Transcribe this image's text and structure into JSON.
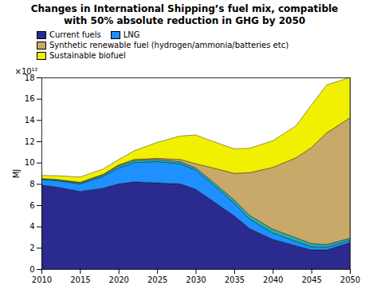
{
  "chart_data": {
    "type": "area",
    "stacked": true,
    "title": "Changes in International Shipping’s fuel mix, compatible\nwith 50% absolute reduction in GHG by 2050",
    "ylabel": "MJ",
    "annotations": [
      "×10¹²"
    ],
    "x": [
      2010,
      2012,
      2015,
      2018,
      2020,
      2022,
      2025,
      2028,
      2030,
      2032,
      2035,
      2037,
      2040,
      2043,
      2045,
      2047,
      2050
    ],
    "series": [
      {
        "name": "Current fuels",
        "color": "#2b2b8f",
        "values": [
          7.9,
          7.7,
          7.3,
          7.6,
          8.0,
          8.2,
          8.1,
          8.0,
          7.5,
          6.5,
          5.0,
          3.8,
          2.8,
          2.2,
          1.8,
          1.8,
          2.5
        ]
      },
      {
        "name": "LNG",
        "color": "#1e90ff",
        "values": [
          0.5,
          0.6,
          0.7,
          1.1,
          1.5,
          1.8,
          2.0,
          1.9,
          1.8,
          1.6,
          1.2,
          0.9,
          0.6,
          0.4,
          0.3,
          0.25,
          0.2
        ]
      },
      {
        "name": null,
        "color": "#20b2aa",
        "values": [
          0.1,
          0.1,
          0.1,
          0.15,
          0.2,
          0.2,
          0.2,
          0.2,
          0.2,
          0.25,
          0.3,
          0.35,
          0.35,
          0.35,
          0.3,
          0.25,
          0.2
        ]
      },
      {
        "name": "Synthetic renewable fuel (hydrogen/ammonia/batteries etc)",
        "color": "#c8a96a",
        "values": [
          0.0,
          0.02,
          0.05,
          0.05,
          0.08,
          0.1,
          0.1,
          0.2,
          0.4,
          1.2,
          2.5,
          4.0,
          5.8,
          7.5,
          9.0,
          10.5,
          11.3
        ]
      },
      {
        "name": "Sustainable biofuel",
        "color": "#f0f000",
        "values": [
          0.3,
          0.35,
          0.5,
          0.5,
          0.5,
          0.8,
          1.5,
          2.2,
          2.7,
          2.5,
          2.3,
          2.3,
          2.5,
          3.0,
          4.0,
          4.5,
          3.8
        ]
      }
    ],
    "xlim": [
      2010,
      2050
    ],
    "xticks": [
      2010,
      2015,
      2020,
      2025,
      2030,
      2035,
      2040,
      2045,
      2050
    ],
    "ylim": [
      0,
      18
    ],
    "yticks": [
      0,
      2,
      4,
      6,
      8,
      10,
      12,
      14,
      16,
      18
    ],
    "legend": "top"
  }
}
